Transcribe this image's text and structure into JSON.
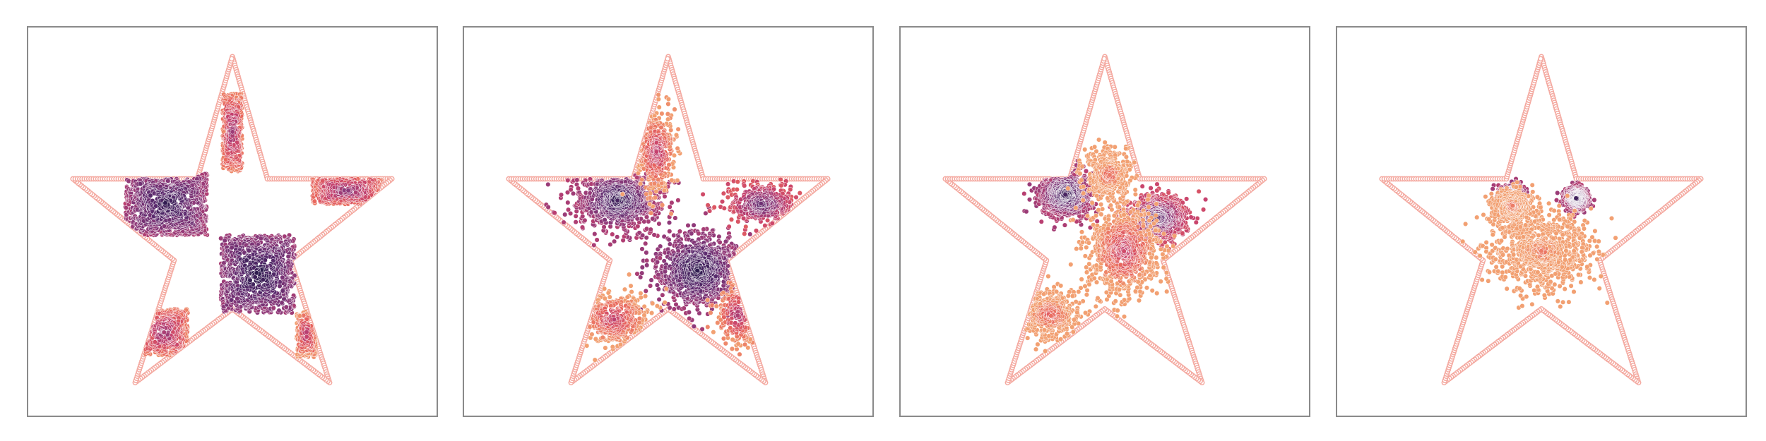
{
  "figure": {
    "background": "#ffffff",
    "frame_color": "#8a8a8a",
    "boundary_color": "#f4a9a0",
    "colormap": [
      "#2d1b4e",
      "#5b2a6e",
      "#8e3a7a",
      "#c5416e",
      "#e8645e",
      "#f2a072"
    ],
    "boundary_marker": "hollow circle"
  },
  "chart_data": [
    {
      "type": "scatter",
      "panel": 1,
      "xlim": [
        -1.05,
        1.05
      ],
      "ylim": [
        -0.9,
        1.1
      ],
      "axes_visible": false,
      "grid": false,
      "boundary_shape": "five-pointed star",
      "boundary_vertices": [
        [
          0.0,
          0.95
        ],
        [
          0.18,
          0.32
        ],
        [
          0.82,
          0.32
        ],
        [
          0.3,
          -0.1
        ],
        [
          0.5,
          -0.73
        ],
        [
          0.0,
          -0.35
        ],
        [
          -0.5,
          -0.73
        ],
        [
          -0.3,
          -0.1
        ],
        [
          -0.82,
          0.32
        ],
        [
          -0.18,
          0.32
        ]
      ],
      "clusters": [
        {
          "center": [
            -0.34,
            0.19
          ],
          "half_size": [
            0.21,
            0.16
          ],
          "shape": "square",
          "density": "high",
          "color_level": 0.05
        },
        {
          "center": [
            0.13,
            -0.17
          ],
          "half_size": [
            0.19,
            0.2
          ],
          "shape": "square",
          "density": "high",
          "color_level": 0.0
        },
        {
          "center": [
            0.0,
            0.56
          ],
          "half_size": [
            0.05,
            0.2
          ],
          "shape": "square",
          "density": "medium",
          "color_level": 0.45
        },
        {
          "center": [
            0.59,
            0.26
          ],
          "half_size": [
            0.18,
            0.07
          ],
          "shape": "square",
          "density": "medium",
          "color_level": 0.4
        },
        {
          "center": [
            -0.35,
            -0.47
          ],
          "half_size": [
            0.12,
            0.12
          ],
          "shape": "square",
          "density": "medium",
          "color_level": 0.45
        },
        {
          "center": [
            0.38,
            -0.48
          ],
          "half_size": [
            0.05,
            0.12
          ],
          "shape": "square",
          "density": "low",
          "color_level": 0.55
        }
      ]
    },
    {
      "type": "scatter",
      "panel": 2,
      "xlim": [
        -1.05,
        1.05
      ],
      "ylim": [
        -0.9,
        1.1
      ],
      "axes_visible": false,
      "grid": false,
      "boundary_shape": "five-pointed star",
      "boundary_vertices": [
        [
          0.0,
          0.95
        ],
        [
          0.18,
          0.32
        ],
        [
          0.82,
          0.32
        ],
        [
          0.3,
          -0.1
        ],
        [
          0.5,
          -0.73
        ],
        [
          0.0,
          -0.35
        ],
        [
          -0.5,
          -0.73
        ],
        [
          -0.3,
          -0.1
        ],
        [
          -0.82,
          0.32
        ],
        [
          -0.18,
          0.32
        ]
      ],
      "clusters": [
        {
          "center": [
            -0.26,
            0.21
          ],
          "half_size": [
            0.19,
            0.14
          ],
          "shape": "blob",
          "density": "high",
          "color_level": 0.05
        },
        {
          "center": [
            0.15,
            -0.15
          ],
          "half_size": [
            0.19,
            0.18
          ],
          "shape": "blob",
          "density": "high",
          "color_level": 0.0
        },
        {
          "center": [
            -0.06,
            0.46
          ],
          "half_size": [
            0.09,
            0.18
          ],
          "shape": "blob",
          "density": "medium",
          "color_level": 0.55
        },
        {
          "center": [
            0.48,
            0.19
          ],
          "half_size": [
            0.16,
            0.1
          ],
          "shape": "blob",
          "density": "medium",
          "color_level": 0.25
        },
        {
          "center": [
            -0.28,
            -0.4
          ],
          "half_size": [
            0.17,
            0.13
          ],
          "shape": "blob",
          "density": "medium",
          "color_level": 0.6
        },
        {
          "center": [
            0.36,
            -0.38
          ],
          "half_size": [
            0.1,
            0.14
          ],
          "shape": "blob",
          "density": "low",
          "color_level": 0.5
        }
      ]
    },
    {
      "type": "scatter",
      "panel": 3,
      "xlim": [
        -1.05,
        1.05
      ],
      "ylim": [
        -0.9,
        1.1
      ],
      "axes_visible": false,
      "grid": false,
      "boundary_shape": "five-pointed star",
      "boundary_vertices": [
        [
          0.0,
          0.95
        ],
        [
          0.18,
          0.32
        ],
        [
          0.82,
          0.32
        ],
        [
          0.3,
          -0.1
        ],
        [
          0.5,
          -0.73
        ],
        [
          0.0,
          -0.35
        ],
        [
          -0.5,
          -0.73
        ],
        [
          -0.3,
          -0.1
        ],
        [
          -0.82,
          0.32
        ],
        [
          -0.18,
          0.32
        ]
      ],
      "clusters": [
        {
          "center": [
            -0.2,
            0.24
          ],
          "half_size": [
            0.12,
            0.1
          ],
          "shape": "blob",
          "density": "high",
          "color_level": 0.05
        },
        {
          "center": [
            0.27,
            0.12
          ],
          "half_size": [
            0.14,
            0.1
          ],
          "shape": "blob",
          "density": "high",
          "color_level": 0.2
        },
        {
          "center": [
            0.1,
            -0.05
          ],
          "half_size": [
            0.16,
            0.2
          ],
          "shape": "blob",
          "density": "high",
          "color_level": 0.6
        },
        {
          "center": [
            -0.28,
            -0.38
          ],
          "half_size": [
            0.15,
            0.12
          ],
          "shape": "blob",
          "density": "medium",
          "color_level": 0.75
        },
        {
          "center": [
            0.02,
            0.34
          ],
          "half_size": [
            0.12,
            0.12
          ],
          "shape": "blob",
          "density": "medium",
          "color_level": 0.8
        }
      ]
    },
    {
      "type": "scatter",
      "panel": 4,
      "xlim": [
        -1.05,
        1.05
      ],
      "ylim": [
        -0.9,
        1.1
      ],
      "axes_visible": false,
      "grid": false,
      "boundary_shape": "five-pointed star",
      "boundary_vertices": [
        [
          0.0,
          0.95
        ],
        [
          0.18,
          0.32
        ],
        [
          0.82,
          0.32
        ],
        [
          0.3,
          -0.1
        ],
        [
          0.5,
          -0.73
        ],
        [
          0.0,
          -0.35
        ],
        [
          -0.5,
          -0.73
        ],
        [
          -0.3,
          -0.1
        ],
        [
          -0.82,
          0.32
        ],
        [
          -0.18,
          0.32
        ]
      ],
      "clusters": [
        {
          "center": [
            -0.15,
            0.23
          ],
          "half_size": [
            0.05,
            0.05
          ],
          "shape": "blob",
          "density": "high",
          "color_level": 0.05
        },
        {
          "center": [
            0.18,
            0.22
          ],
          "half_size": [
            0.05,
            0.05
          ],
          "shape": "blob",
          "density": "high",
          "color_level": 0.05
        },
        {
          "center": [
            0.0,
            -0.05
          ],
          "half_size": [
            0.25,
            0.18
          ],
          "shape": "blob",
          "density": "high",
          "color_level": 0.88
        },
        {
          "center": [
            -0.15,
            0.18
          ],
          "half_size": [
            0.1,
            0.08
          ],
          "shape": "blob",
          "density": "medium",
          "color_level": 0.85
        }
      ]
    }
  ]
}
